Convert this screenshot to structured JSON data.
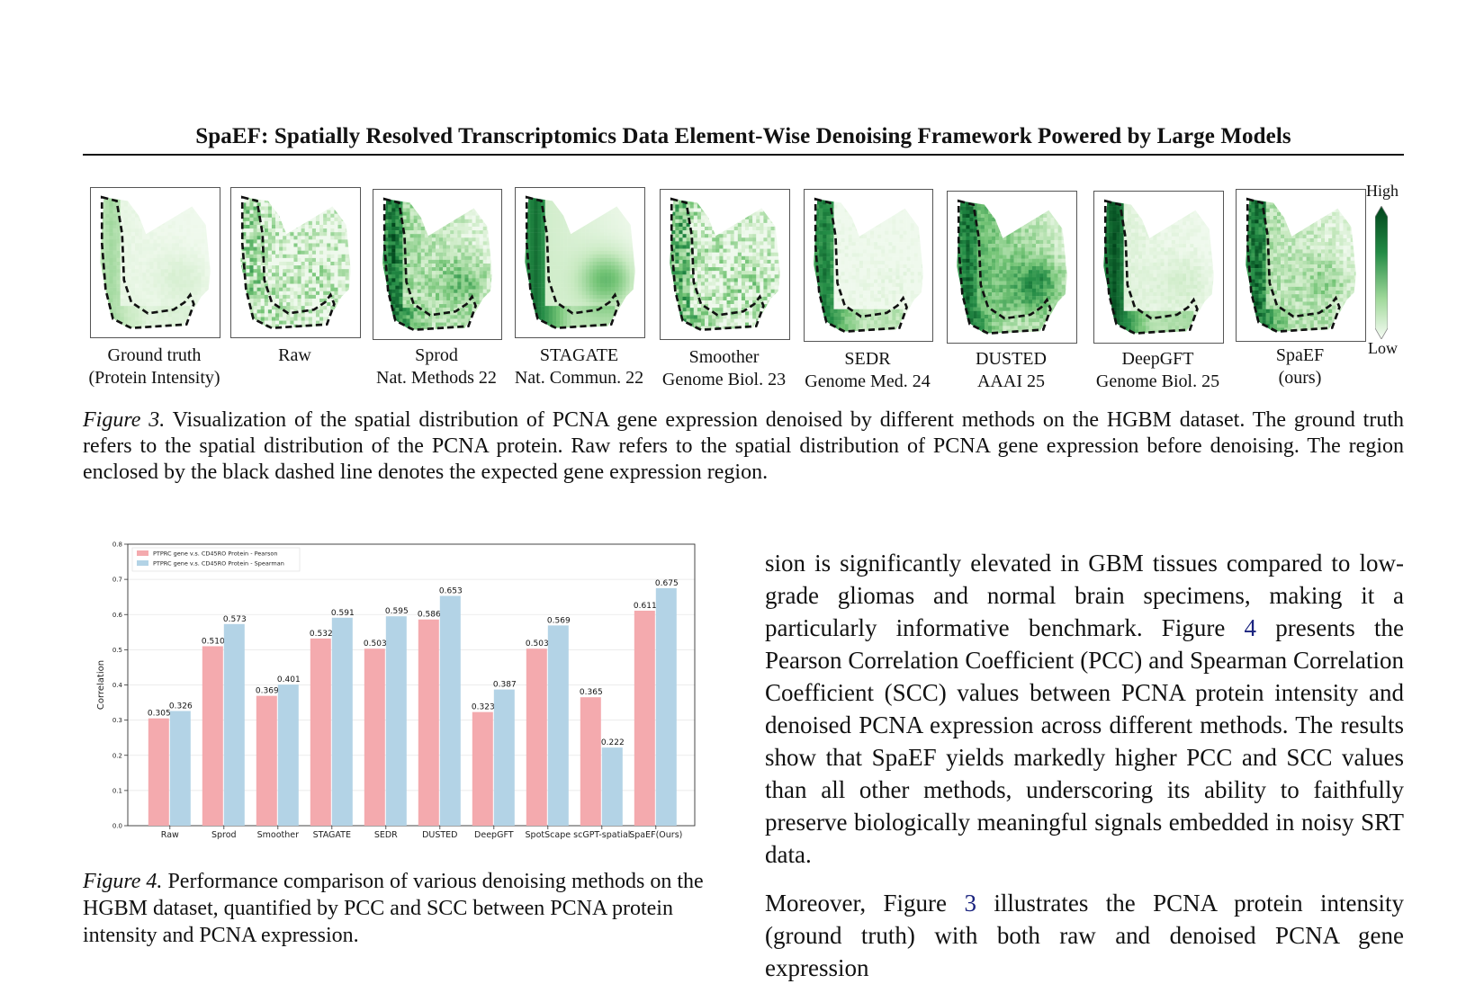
{
  "header": {
    "title": "SpaEF: Spatially Resolved Transcriptomics Data Element-Wise Denoising Framework Powered by Large Models"
  },
  "figure3": {
    "panels": [
      {
        "line1": "Ground truth",
        "line2": "(Protein Intensity)"
      },
      {
        "line1": "Raw",
        "line2": ""
      },
      {
        "line1": "Sprod",
        "line2": "Nat. Methods 22"
      },
      {
        "line1": "STAGATE",
        "line2": "Nat. Commun. 22"
      },
      {
        "line1": "Smoother",
        "line2": "Genome Biol. 23"
      },
      {
        "line1": "SEDR",
        "line2": "Genome Med. 24"
      },
      {
        "line1": "DUSTED",
        "line2": "AAAI 25"
      },
      {
        "line1": "DeepGFT",
        "line2": "Genome Biol. 25"
      },
      {
        "line1": "SpaEF",
        "line2": "(ours)"
      }
    ],
    "colorbar": {
      "high": "High",
      "low": "Low",
      "color_high": "#00441b",
      "color_low": "#f7fcf5"
    },
    "caption_label": "Figure 3.",
    "caption_text": " Visualization of the spatial distribution of PCNA gene expression denoised by different methods on the HGBM dataset. The ground truth refers to the spatial distribution of the PCNA protein. Raw refers to the spatial distribution of PCNA gene expression before denoising. The region enclosed by the black dashed line denotes the expected gene expression region."
  },
  "chart_data": {
    "type": "bar",
    "categories": [
      "Raw",
      "Sprod",
      "Smoother",
      "STAGATE",
      "SEDR",
      "DUSTED",
      "DeepGFT",
      "SpotScape",
      "scGPT-spatial",
      "SpaEF(Ours)"
    ],
    "series": [
      {
        "name": "PTPRC gene v.s. CD45RO Protein - Pearson",
        "color": "#f4aaae",
        "values": [
          0.305,
          0.51,
          0.369,
          0.532,
          0.503,
          0.586,
          0.323,
          0.503,
          0.365,
          0.611
        ]
      },
      {
        "name": "PTPRC gene v.s. CD45RO Protein - Spearman",
        "color": "#b3d3e6",
        "values": [
          0.326,
          0.573,
          0.401,
          0.591,
          0.595,
          0.653,
          0.387,
          0.569,
          0.222,
          0.675
        ]
      }
    ],
    "value_labels": [
      [
        "0.305",
        "0.510",
        "0.369",
        "0.532",
        "0.503",
        "0.586",
        "0.323",
        "0.503",
        "0.365",
        "0.611"
      ],
      [
        "0.326",
        "0.573",
        "0.401",
        "0.591",
        "0.595",
        "0.653",
        "0.387",
        "0.569",
        "0.222",
        "0.675"
      ]
    ],
    "ylabel": "Correlation",
    "ylim": [
      0.0,
      0.8
    ],
    "yticks": [
      "0.0",
      "0.1",
      "0.2",
      "0.3",
      "0.4",
      "0.5",
      "0.6",
      "0.7",
      "0.8"
    ],
    "grid": true,
    "legend": "top-left"
  },
  "figure4": {
    "caption_label": "Figure 4.",
    "caption_text": " Performance comparison of various denoising methods on the HGBM dataset, quantified by PCC and SCC between PCNA protein intensity and PCNA expression."
  },
  "body": {
    "para1_a": "sion is significantly elevated in GBM tissues compared to low-grade gliomas and normal brain specimens, making it a particularly informative benchmark. Figure ",
    "para1_ref": "4",
    "para1_b": " presents the Pearson Correlation Coefficient (PCC) and Spearman Correlation Coefficient (SCC) values between PCNA protein intensity and denoised PCNA expression across different methods.  The results show that SpaEF yields markedly higher PCC and SCC values than all other methods, underscoring its ability to faithfully preserve biologically meaningful signals embedded in noisy SRT data.",
    "para2_a": "Moreover, Figure ",
    "para2_ref": "3",
    "para2_b": " illustrates the PCNA protein intensity (ground truth) with both raw and denoised PCNA gene expression"
  }
}
